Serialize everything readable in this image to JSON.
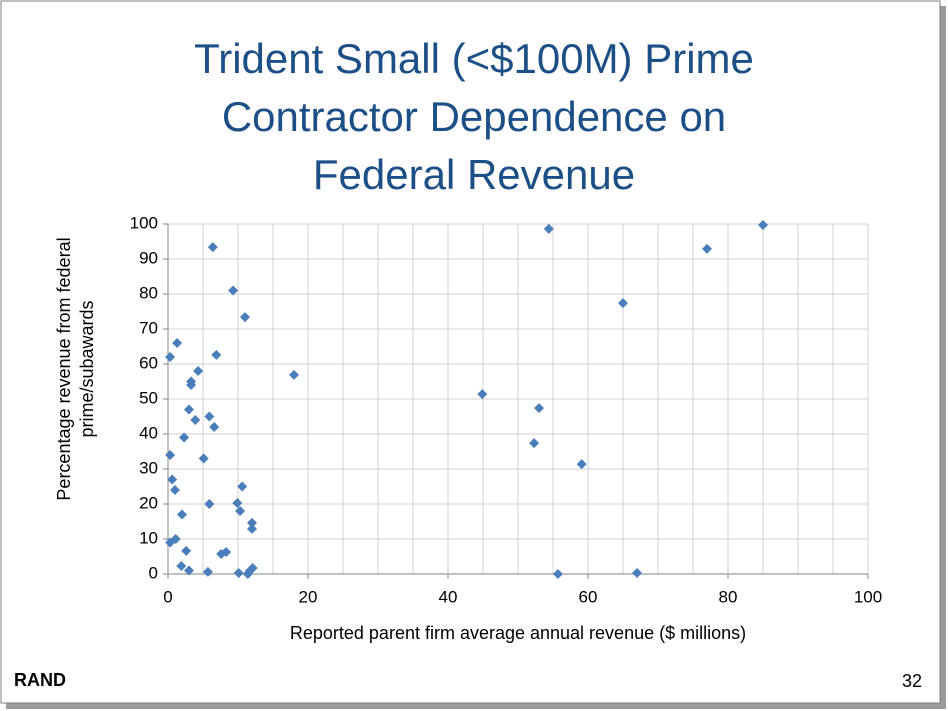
{
  "chart_data": {
    "type": "scatter",
    "title": [
      "Trident Small (<$100M) Prime",
      "Contractor Dependence on",
      "Federal Revenue"
    ],
    "xlabel": "Reported parent firm average annual revenue ($ millions)",
    "ylabel": [
      "Percentage revenue from federal",
      "prime/subawards"
    ],
    "color": "#4a7ebb",
    "xlim": [
      0,
      100
    ],
    "ylim": [
      0,
      100
    ],
    "xticks": [
      0,
      20,
      40,
      60,
      80,
      100
    ],
    "yticks": [
      0,
      10,
      20,
      30,
      40,
      50,
      60,
      70,
      80,
      90,
      100
    ],
    "xgrid": [
      0,
      5,
      10,
      15,
      20,
      25,
      30,
      35,
      40,
      45,
      50,
      55,
      60,
      65,
      70,
      75,
      80,
      85,
      90,
      95,
      100
    ],
    "grid": true,
    "x": [
      0.3,
      0.3,
      0.3,
      0.6,
      1,
      1.1,
      1.3,
      1.9,
      2,
      2.3,
      2.6,
      3,
      3,
      3.3,
      3.3,
      3.9,
      4.3,
      5.1,
      5.7,
      5.9,
      5.9,
      6.4,
      6.6,
      6.9,
      7.6,
      8.3,
      9.3,
      9.9,
      10.1,
      10.3,
      10.6,
      11,
      11.4,
      11.7,
      12.1,
      12,
      12,
      18,
      44.9,
      52.3,
      53,
      54.4,
      55.7,
      59.1,
      65,
      67,
      77,
      85
    ],
    "values": [
      9,
      34,
      62,
      27,
      24,
      10,
      66,
      2.3,
      17,
      39,
      6.6,
      1,
      47,
      55,
      54,
      44,
      58,
      33,
      0.6,
      45,
      20,
      93.4,
      42,
      62.6,
      5.7,
      6.3,
      81,
      20.3,
      0.3,
      18,
      25,
      73.4,
      0,
      0.9,
      1.7,
      14.6,
      12.9,
      56.9,
      51.4,
      37.4,
      47.4,
      98.6,
      0,
      31.4,
      77.4,
      0.3,
      92.9,
      99.7
    ]
  },
  "footer": {
    "left": "RAND",
    "page": "32"
  }
}
